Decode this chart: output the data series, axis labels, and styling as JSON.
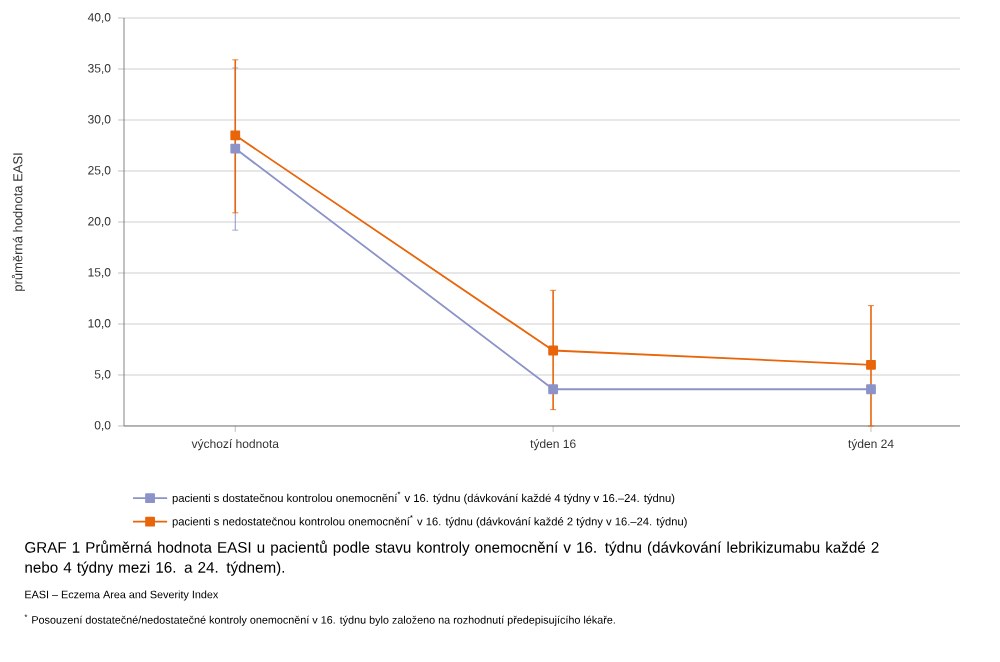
{
  "chart_data": {
    "type": "line",
    "title": "GRAF 1 Průměrná hodnota EASI u pacientů podle stavu kontroly onemocnění v 16. týdnu (dávkování lebrikizumabu každé 2 nebo 4 týdny mezi 16. a 24. týdnem).",
    "ylabel": "průměrná hodnota EASI",
    "categories": [
      "výchozí hodnota",
      "týden 16",
      "týden 24"
    ],
    "series": [
      {
        "name": "pacienti s dostatečnou kontrolou onemocnění$^{*}$ v 16. týdnu (dávkování každé 4 týdny v 16.–24. týdnu)",
        "color": "#8c93c8",
        "values": [
          27.2,
          3.6,
          3.6
        ],
        "errors": [
          [
            19.2,
            35.1
          ],
          null,
          null
        ]
      },
      {
        "name": "pacienti s nedostatečnou kontrolou onemocnění$^{*}$ v 16. týdnu (dávkování každé 2 týdny v 16.–24. týdnu)",
        "color": "#e8650a",
        "values": [
          28.5,
          7.4,
          6.0
        ],
        "errors": [
          [
            20.9,
            35.9
          ],
          [
            1.6,
            13.3
          ],
          [
            0,
            11.8
          ]
        ]
      }
    ],
    "ylim": [
      0,
      40
    ],
    "yticks": [
      {
        "value": 0,
        "label": "0,0"
      },
      {
        "value": 5,
        "label": "5,0"
      },
      {
        "value": 10,
        "label": "10,0"
      },
      {
        "value": 15,
        "label": "15,0"
      },
      {
        "value": 20,
        "label": "20,0"
      },
      {
        "value": 25,
        "label": "25,0"
      },
      {
        "value": 30,
        "label": "30,0"
      },
      {
        "value": 35,
        "label": "35,0"
      },
      {
        "value": 40,
        "label": "40,0"
      }
    ],
    "grid": "y",
    "legend": "bottom",
    "marker": "square",
    "line_style": "solid",
    "annotations": [
      "EASI – Eczema Area and Severity Index",
      "$^{*}$ Posouzení dostatečné/nedostatečné kontroly onemocnění v 16. týdnu bylo založeno na rozhodnutí předepisujícího lékaře."
    ]
  }
}
